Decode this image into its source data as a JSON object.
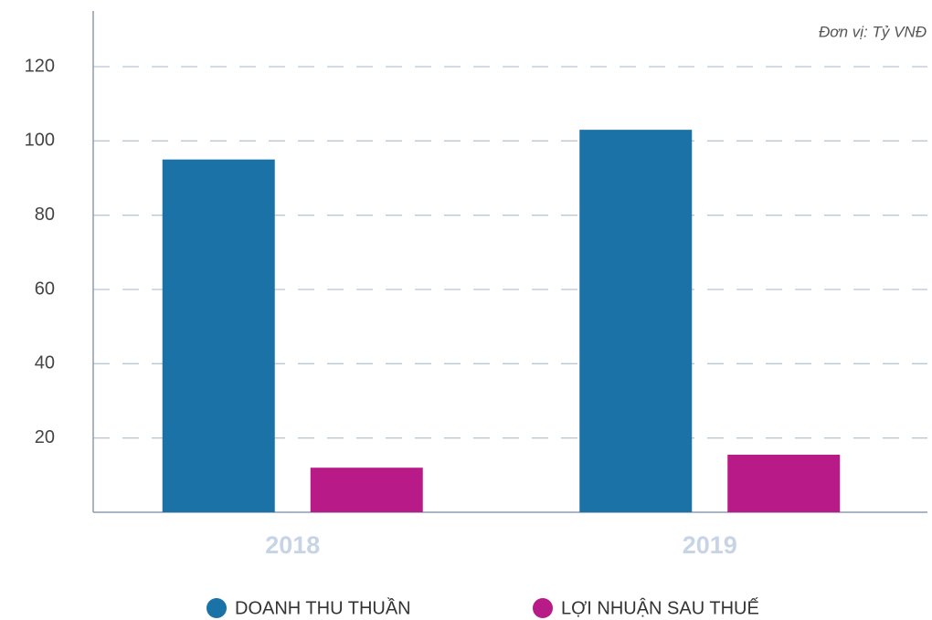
{
  "chart_data": {
    "type": "bar",
    "annotation": "Đơn vị: Tỷ VNĐ",
    "categories": [
      "2018",
      "2019"
    ],
    "series": [
      {
        "name": "DOANH THU THUẦN",
        "color": "#1b72a6",
        "values": [
          95,
          103
        ]
      },
      {
        "name": "LỢI NHUẬN SAU THUẾ",
        "color": "#b81a87",
        "values": [
          12,
          15.5
        ]
      }
    ],
    "ylim": [
      0,
      135
    ],
    "yticks": [
      20,
      40,
      60,
      80,
      100,
      120
    ],
    "grid": true
  }
}
